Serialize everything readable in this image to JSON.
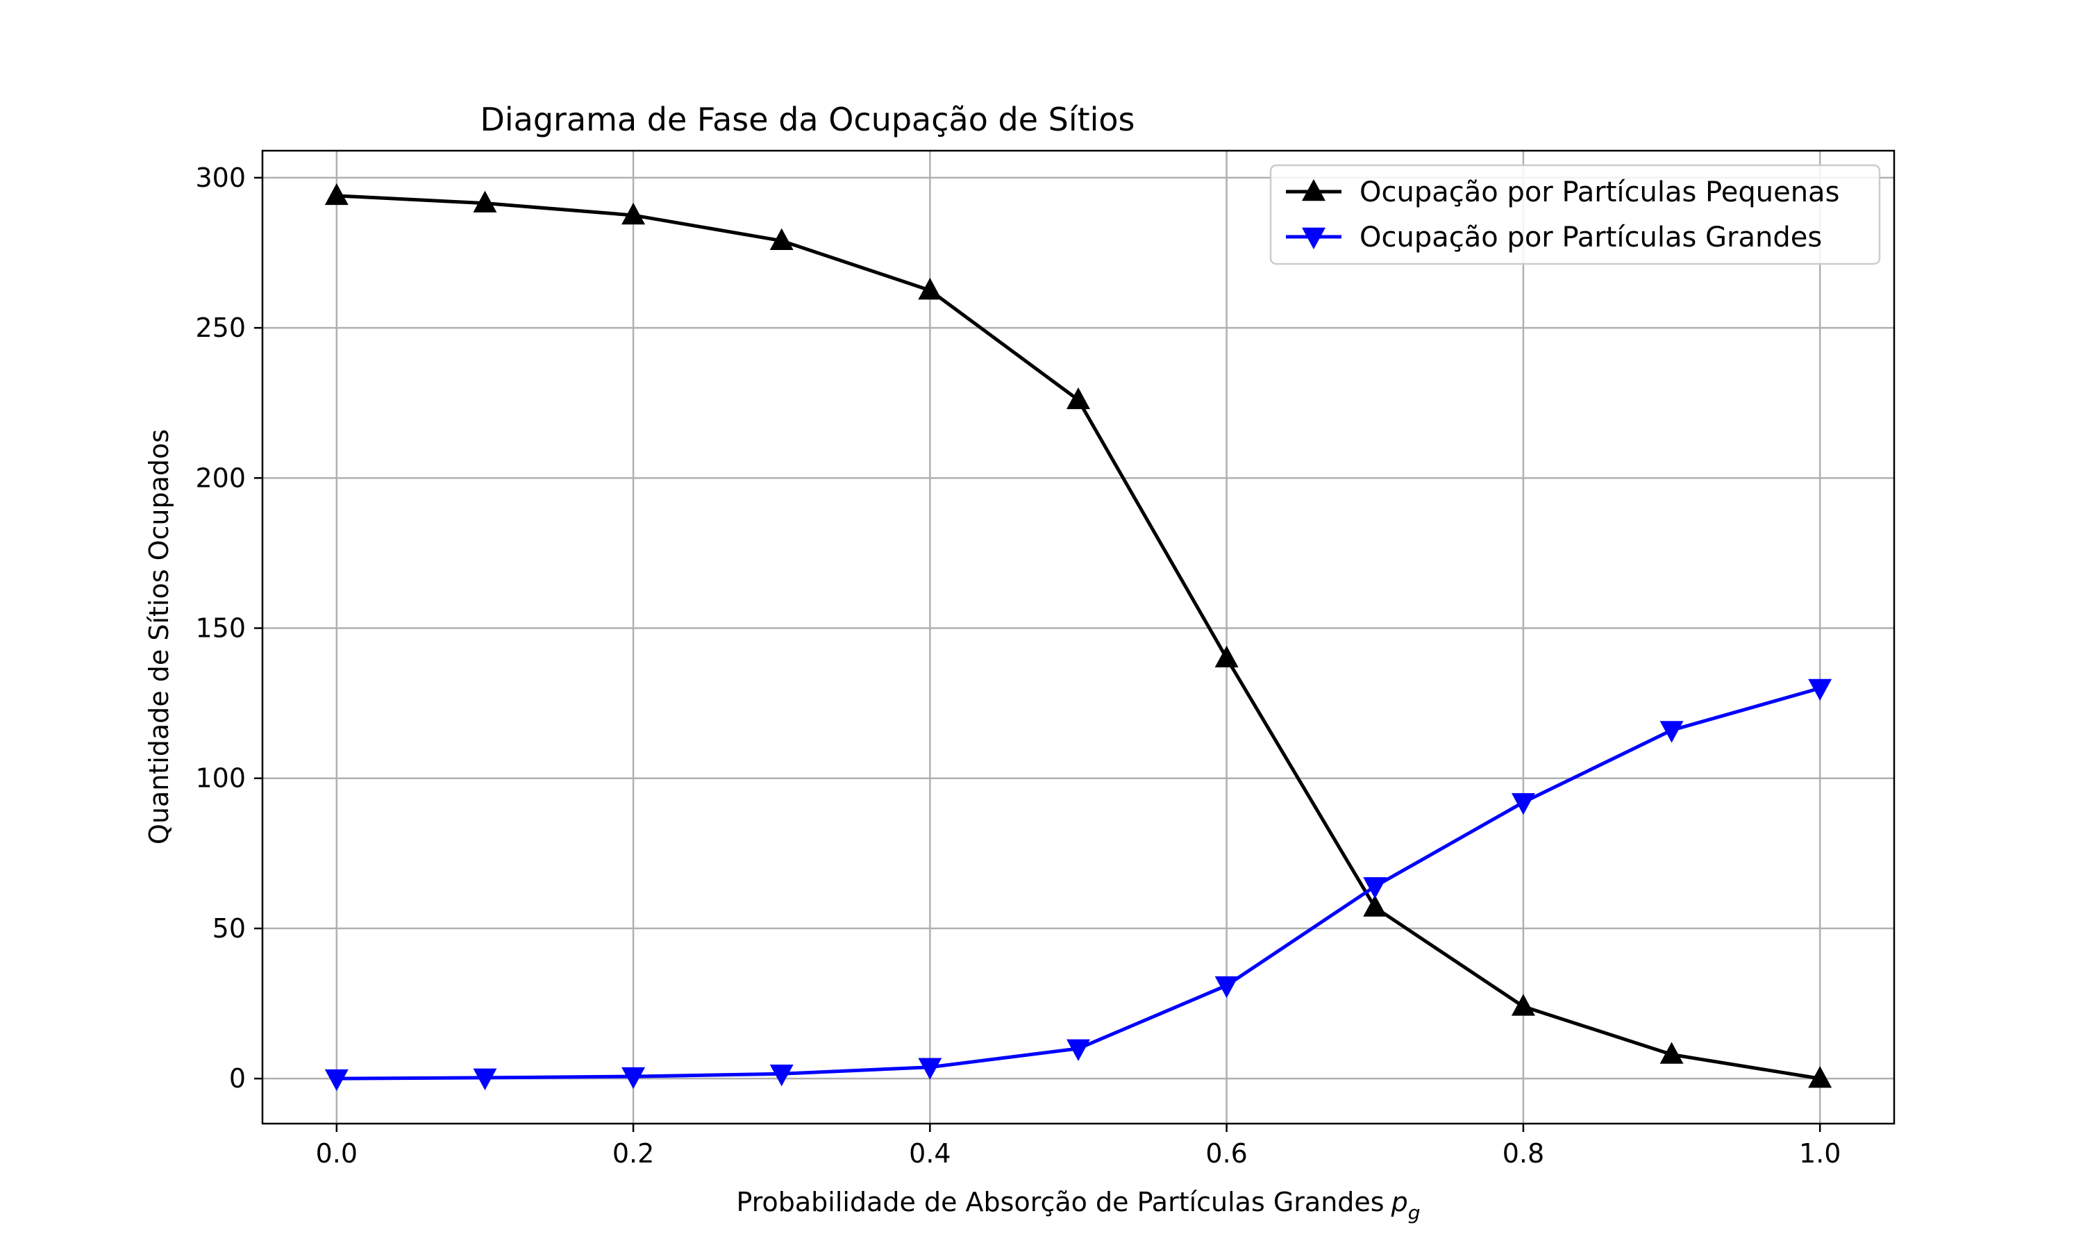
{
  "chart_data": {
    "type": "line",
    "title": "Diagrama de Fase da Ocupação de Sítios",
    "xlabel": "Probabilidade de Absorção de Partículas Grandes",
    "xlabel_math_symbol": "p",
    "xlabel_math_subscript": "g",
    "ylabel": "Quantidade de Sítios Ocupados",
    "xlim": [
      -0.05,
      1.05
    ],
    "ylim": [
      -15,
      309
    ],
    "x_ticks": [
      0.0,
      0.2,
      0.4,
      0.6,
      0.8,
      1.0
    ],
    "x_tick_labels": [
      "0.0",
      "0.2",
      "0.4",
      "0.6",
      "0.8",
      "1.0"
    ],
    "y_ticks": [
      0,
      50,
      100,
      150,
      200,
      250,
      300
    ],
    "y_tick_labels": [
      "0",
      "50",
      "100",
      "150",
      "200",
      "250",
      "300"
    ],
    "grid": true,
    "legend_position": "top-right",
    "x": [
      0.0,
      0.1,
      0.2,
      0.3,
      0.4,
      0.5,
      0.6,
      0.7,
      0.8,
      0.9,
      1.0
    ],
    "series": [
      {
        "name": "Ocupação por Partículas Pequenas",
        "color": "#000000",
        "marker": "triangle-up",
        "values": [
          294,
          291.5,
          287.5,
          279,
          262.5,
          226,
          140,
          57,
          24,
          8,
          0
        ]
      },
      {
        "name": "Ocupação por Partículas Grandes",
        "color": "#0000ff",
        "marker": "triangle-down",
        "values": [
          0,
          0.3,
          0.7,
          1.6,
          3.8,
          10,
          31,
          64,
          92,
          116,
          130
        ]
      }
    ]
  }
}
